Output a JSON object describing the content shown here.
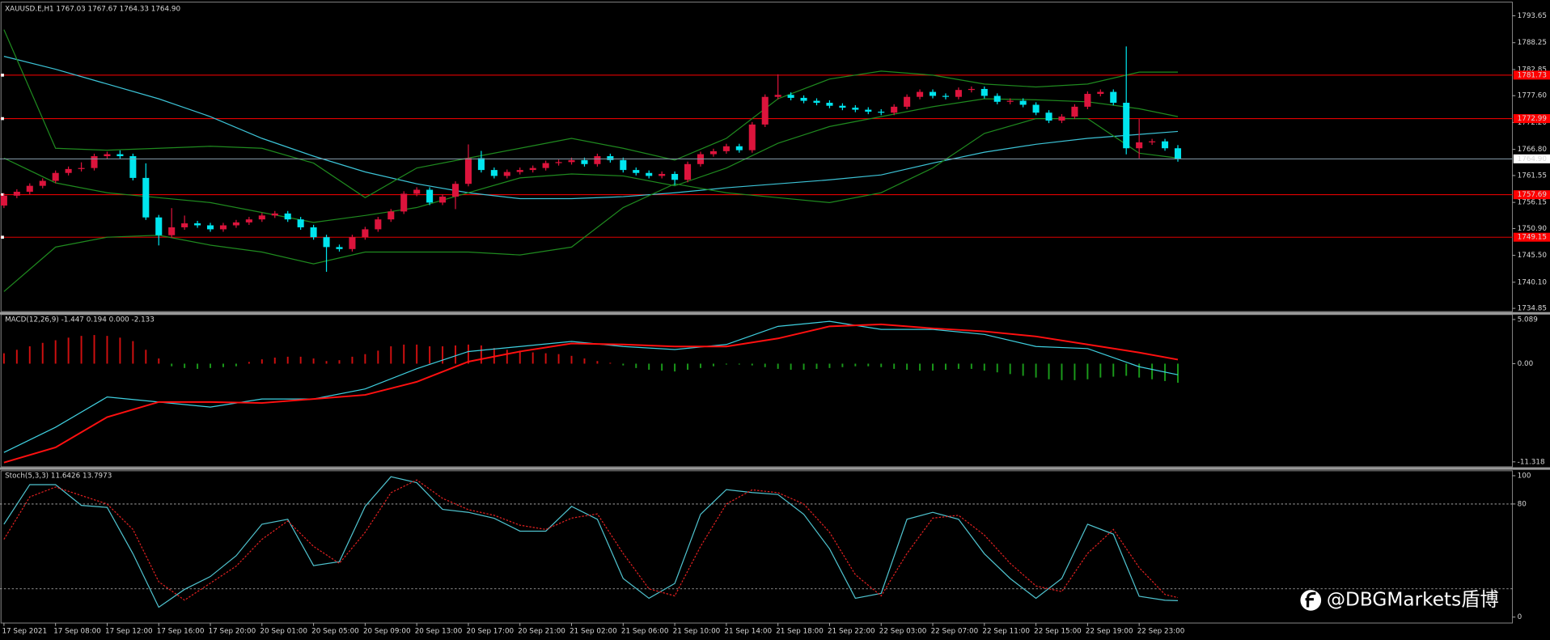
{
  "chart_data": [
    {
      "type": "candlestick",
      "title": "XAUUSD.E,H1  1767.03 1767.67 1764.33 1764.90",
      "x_labels": [
        "17 Sep 2021",
        "17 Sep 08:00",
        "17 Sep 12:00",
        "17 Sep 16:00",
        "17 Sep 20:00",
        "20 Sep 01:00",
        "20 Sep 05:00",
        "20 Sep 09:00",
        "20 Sep 13:00",
        "20 Sep 17:00",
        "20 Sep 21:00",
        "21 Sep 02:00",
        "21 Sep 06:00",
        "21 Sep 10:00",
        "21 Sep 14:00",
        "21 Sep 18:00",
        "21 Sep 22:00",
        "22 Sep 03:00",
        "22 Sep 07:00",
        "22 Sep 11:00",
        "22 Sep 15:00",
        "22 Sep 19:00",
        "22 Sep 23:00"
      ],
      "candles": {
        "open": [
          1755.51,
          1757.5,
          1758.29,
          1759.48,
          1760.48,
          1762.07,
          1762.86,
          1763.06,
          1765.44,
          1765.84,
          1765.44,
          1761.07,
          1753.13,
          1749.55,
          1751.14,
          1751.94,
          1751.54,
          1750.74,
          1751.54,
          1752.13,
          1752.73,
          1753.52,
          1753.92,
          1752.73,
          1751.14,
          1749.15,
          1747.17,
          1746.77,
          1749.15,
          1750.74,
          1752.73,
          1754.32,
          1757.89,
          1758.69,
          1756.11,
          1757.3,
          1759.88,
          1765.05,
          1762.66,
          1761.47,
          1762.26,
          1762.66,
          1763.06,
          1764.05,
          1764.25,
          1764.65,
          1763.85,
          1765.44,
          1764.65,
          1762.66,
          1762.07,
          1761.47,
          1761.87,
          1760.68,
          1763.85,
          1765.84,
          1766.44,
          1767.43,
          1766.64,
          1771.8,
          1777.36,
          1777.76,
          1777.16,
          1776.57,
          1776.17,
          1775.57,
          1775.18,
          1774.78,
          1774.38,
          1774.18,
          1775.38,
          1777.36,
          1778.36,
          1777.56,
          1777.36,
          1778.75,
          1778.95,
          1777.56,
          1776.37,
          1776.57,
          1775.77,
          1774.18,
          1772.59,
          1773.39,
          1775.38,
          1777.96,
          1778.36,
          1776.17,
          1767.03,
          1768.22,
          1768.42,
          1767.03
        ],
        "high": [
          1758.0,
          1758.79,
          1759.98,
          1760.98,
          1762.57,
          1763.36,
          1764.2,
          1765.94,
          1766.34,
          1766.6,
          1765.94,
          1764.0,
          1753.63,
          1755.0,
          1753.5,
          1752.44,
          1752.04,
          1752.04,
          1752.63,
          1753.23,
          1754.02,
          1754.42,
          1754.42,
          1753.23,
          1751.64,
          1749.65,
          1747.67,
          1749.65,
          1751.24,
          1753.23,
          1754.82,
          1758.39,
          1759.19,
          1759.19,
          1757.8,
          1760.38,
          1767.8,
          1766.5,
          1763.16,
          1762.76,
          1763.16,
          1763.56,
          1764.55,
          1764.75,
          1765.15,
          1765.15,
          1765.94,
          1765.94,
          1765.15,
          1763.16,
          1762.57,
          1762.37,
          1762.37,
          1764.35,
          1766.34,
          1766.94,
          1767.93,
          1767.93,
          1772.3,
          1777.86,
          1781.9,
          1778.26,
          1777.66,
          1777.07,
          1776.67,
          1776.07,
          1775.68,
          1775.28,
          1774.88,
          1775.88,
          1777.86,
          1778.86,
          1778.86,
          1778.06,
          1779.25,
          1779.45,
          1779.45,
          1778.06,
          1777.07,
          1777.07,
          1776.27,
          1774.68,
          1773.89,
          1775.88,
          1778.46,
          1778.86,
          1778.86,
          1787.5,
          1772.9,
          1768.92,
          1768.92,
          1767.67
        ],
        "low": [
          1755.01,
          1757.0,
          1757.79,
          1758.98,
          1759.98,
          1761.57,
          1762.36,
          1762.56,
          1764.94,
          1764.94,
          1760.57,
          1752.63,
          1747.5,
          1749.05,
          1750.64,
          1751.04,
          1750.24,
          1750.24,
          1751.04,
          1751.63,
          1752.23,
          1753.02,
          1752.23,
          1750.64,
          1748.65,
          1742.2,
          1746.27,
          1746.27,
          1748.65,
          1750.24,
          1752.23,
          1753.82,
          1757.39,
          1755.61,
          1755.61,
          1754.8,
          1759.38,
          1762.16,
          1760.97,
          1760.97,
          1761.76,
          1762.16,
          1762.56,
          1763.55,
          1763.75,
          1763.35,
          1763.35,
          1764.15,
          1762.16,
          1761.57,
          1760.97,
          1760.97,
          1759.6,
          1760.18,
          1763.35,
          1765.34,
          1765.94,
          1766.14,
          1766.14,
          1771.3,
          1776.86,
          1776.66,
          1776.07,
          1775.67,
          1775.07,
          1774.68,
          1774.28,
          1773.88,
          1773.68,
          1773.68,
          1774.88,
          1776.86,
          1777.06,
          1776.86,
          1776.86,
          1778.25,
          1777.06,
          1775.87,
          1775.87,
          1775.27,
          1773.68,
          1772.09,
          1772.09,
          1772.89,
          1774.88,
          1777.46,
          1775.67,
          1765.8,
          1765.0,
          1767.72,
          1766.53,
          1764.33
        ],
        "close": [
          1757.5,
          1758.29,
          1759.48,
          1760.48,
          1762.07,
          1762.86,
          1763.06,
          1765.44,
          1765.84,
          1765.44,
          1761.07,
          1753.13,
          1749.55,
          1751.14,
          1751.94,
          1751.54,
          1750.74,
          1751.54,
          1752.13,
          1752.73,
          1753.52,
          1753.92,
          1752.73,
          1751.14,
          1749.15,
          1747.17,
          1746.77,
          1749.15,
          1750.74,
          1752.73,
          1754.32,
          1757.89,
          1758.69,
          1756.11,
          1757.3,
          1759.88,
          1765.05,
          1762.66,
          1761.47,
          1762.26,
          1762.66,
          1763.06,
          1764.05,
          1764.25,
          1764.65,
          1763.85,
          1765.44,
          1764.65,
          1762.66,
          1762.07,
          1761.47,
          1761.87,
          1760.68,
          1763.85,
          1765.84,
          1766.44,
          1767.43,
          1766.64,
          1771.8,
          1777.36,
          1777.76,
          1777.16,
          1776.57,
          1776.17,
          1775.57,
          1775.18,
          1774.78,
          1774.38,
          1774.18,
          1775.38,
          1777.36,
          1778.36,
          1777.56,
          1777.36,
          1778.75,
          1778.95,
          1777.56,
          1776.37,
          1776.57,
          1775.77,
          1774.18,
          1772.59,
          1773.39,
          1775.38,
          1777.96,
          1778.36,
          1776.17,
          1767.03,
          1768.22,
          1768.42,
          1767.03,
          1764.9
        ]
      },
      "up_color": "#dc143c",
      "down_color": "#00e5ee",
      "ylim": [
        1734.2,
        1796.2
      ],
      "yticks": [
        1793.65,
        1788.25,
        1782.85,
        {
          "value": 1777.6,
          "label": "1777.60"
        },
        {
          "value": 1772.2,
          "label": "1772.20"
        },
        {
          "value": 1766.8,
          "label": "1766.80"
        },
        1761.55,
        1756.15,
        {
          "value": 1750.9,
          "label": "1750.90"
        },
        {
          "value": 1745.5,
          "label": "1745.50"
        },
        {
          "value": 1740.1,
          "label": "1740.10"
        },
        1734.85
      ],
      "levels": [
        1781.73,
        1772.99,
        1757.69,
        1749.15
      ],
      "level_color": "#ff0000",
      "price_label": {
        "value": 1764.9,
        "label": "1764.90"
      },
      "overlays": {
        "x": [
          0,
          4,
          8,
          12,
          16,
          20,
          24,
          28,
          32,
          36,
          40,
          44,
          48,
          52,
          56,
          60,
          64,
          68,
          72,
          76,
          80,
          84,
          88,
          91
        ],
        "series": [
          {
            "color": "#3cc3d6",
            "values": [
              1785.51,
              1782.92,
              1779.94,
              1776.97,
              1773.39,
              1769.02,
              1765.44,
              1762.27,
              1759.88,
              1758.09,
              1756.9,
              1756.9,
              1757.3,
              1758.09,
              1759.09,
              1759.88,
              1760.68,
              1761.67,
              1764.05,
              1766.24,
              1767.83,
              1769.02,
              1769.81,
              1770.41
            ]
          },
          {
            "color": "#1f8a1f",
            "values": [
              1790.87,
              1767.03,
              1766.64,
              1767.03,
              1767.43,
              1767.03,
              1764.05,
              1757.1,
              1763.06,
              1765.05,
              1767.03,
              1769.02,
              1767.03,
              1764.65,
              1769.02,
              1776.97,
              1780.94,
              1782.53,
              1781.73,
              1779.94,
              1779.35,
              1779.94,
              1782.33,
              1782.33
            ]
          },
          {
            "color": "#1f8a1f",
            "values": [
              1765.05,
              1760.08,
              1758.09,
              1757.1,
              1756.11,
              1754.12,
              1752.13,
              1753.52,
              1755.11,
              1758.09,
              1761.07,
              1761.87,
              1761.47,
              1759.48,
              1763.06,
              1768.03,
              1771.4,
              1773.39,
              1775.38,
              1776.97,
              1776.77,
              1776.37,
              1774.98,
              1773.39
            ]
          },
          {
            "color": "#1f8a1f",
            "values": [
              1738.23,
              1747.17,
              1749.15,
              1749.55,
              1747.56,
              1746.17,
              1743.79,
              1746.17,
              1746.17,
              1746.17,
              1745.58,
              1747.17,
              1755.11,
              1759.88,
              1758.09,
              1757.1,
              1756.11,
              1758.09,
              1763.06,
              1770.01,
              1772.99,
              1772.99,
              1766.04,
              1765.05
            ]
          }
        ]
      }
    },
    {
      "type": "macd",
      "label": "MACD(12,26,9) -1.447 0.194 0.000 -2.133",
      "ylim": [
        -11.89,
        5.66
      ],
      "yticks": [
        5.089,
        {
          "value": 0,
          "label": "0.00"
        },
        -11.318
      ],
      "histogram": {
        "up_color": "#d01010",
        "down_color": "#1a9a1a",
        "values": [
          1.2,
          1.6,
          2.0,
          2.4,
          2.7,
          3.0,
          3.2,
          3.3,
          3.2,
          3.0,
          2.6,
          1.6,
          0.6,
          -0.3,
          -0.5,
          -0.6,
          -0.5,
          -0.4,
          -0.3,
          0.2,
          0.5,
          0.7,
          0.8,
          0.8,
          0.6,
          0.3,
          0.4,
          0.8,
          1.1,
          1.5,
          2.0,
          2.2,
          2.2,
          2.0,
          2.0,
          2.1,
          2.2,
          2.1,
          1.8,
          1.6,
          1.5,
          1.3,
          1.2,
          1.1,
          0.9,
          0.6,
          0.3,
          0.1,
          -0.2,
          -0.5,
          -0.7,
          -0.8,
          -0.9,
          -0.7,
          -0.5,
          -0.3,
          -0.1,
          -0.1,
          -0.2,
          -0.4,
          -0.6,
          -0.7,
          -0.7,
          -0.6,
          -0.5,
          -0.4,
          -0.3,
          -0.3,
          -0.4,
          -0.6,
          -0.7,
          -0.8,
          -0.8,
          -0.7,
          -0.6,
          -0.6,
          -0.8,
          -1.0,
          -1.2,
          -1.4,
          -1.6,
          -1.8,
          -1.9,
          -1.9,
          -1.8,
          -1.6,
          -1.5,
          -1.4,
          -1.6,
          -1.8,
          -2.0,
          -2.2
        ]
      },
      "x": [
        0,
        4,
        8,
        12,
        16,
        20,
        24,
        28,
        32,
        36,
        40,
        44,
        48,
        52,
        56,
        60,
        64,
        68,
        72,
        76,
        80,
        84,
        88,
        91
      ],
      "series": [
        {
          "color": "#3fd0e0",
          "values": [
            -10.23,
            -7.33,
            -3.84,
            -4.42,
            -5.0,
            -4.07,
            -4.07,
            -2.91,
            -0.58,
            1.4,
            1.98,
            2.56,
            1.98,
            1.63,
            2.21,
            4.3,
            4.88,
            3.95,
            3.95,
            3.37,
            1.98,
            1.74,
            -0.35,
            -1.28
          ]
        },
        {
          "color": "#ff1010",
          "values": [
            -11.4,
            -9.65,
            -6.16,
            -4.42,
            -4.42,
            -4.53,
            -4.07,
            -3.6,
            -2.09,
            0.23,
            1.4,
            2.33,
            2.21,
            1.98,
            1.98,
            2.91,
            4.3,
            4.53,
            4.07,
            3.72,
            3.14,
            2.21,
            1.28,
            0.47
          ]
        }
      ]
    },
    {
      "type": "line",
      "label": "Stoch(5,3,3) 11.6426 13.7973",
      "ylim": [
        -4.2,
        103.5
      ],
      "yticks": [
        0,
        80,
        100
      ],
      "levels": [
        20,
        80
      ],
      "x": [
        0,
        2,
        4,
        6,
        8,
        10,
        12,
        14,
        16,
        18,
        20,
        22,
        24,
        26,
        28,
        30,
        32,
        34,
        36,
        38,
        40,
        42,
        44,
        46,
        48,
        50,
        52,
        54,
        56,
        58,
        60,
        62,
        64,
        66,
        68,
        70,
        72,
        74,
        76,
        78,
        80,
        82,
        84,
        86,
        88,
        90,
        91
      ],
      "series": [
        {
          "color": "#4fc3cf",
          "dash": false,
          "values": [
            65.7,
            93.7,
            93.7,
            79.0,
            77.6,
            44.8,
            7.0,
            19.6,
            28.7,
            43.4,
            65.7,
            69.2,
            36.4,
            39.2,
            78.3,
            99.3,
            95.1,
            76.2,
            74.1,
            69.9,
            60.8,
            60.8,
            78.3,
            69.2,
            27.3,
            13.3,
            23.8,
            72.7,
            90.2,
            88.1,
            86.7,
            72.7,
            48.3,
            13.3,
            16.8,
            69.2,
            74.1,
            69.2,
            44.8,
            27.3,
            13.3,
            27.3,
            65.7,
            58.7,
            14.7,
            11.9,
            11.6426
          ]
        },
        {
          "color": "#e02020",
          "dash": true,
          "values": [
            55,
            85,
            92,
            86,
            80,
            62,
            25,
            12,
            24,
            36,
            55,
            68,
            50,
            38,
            60,
            88,
            97,
            84,
            76,
            72,
            65,
            62,
            70,
            73,
            45,
            20,
            15,
            50,
            80,
            90,
            88,
            80,
            60,
            30,
            15,
            45,
            70,
            72,
            58,
            38,
            22,
            18,
            45,
            62,
            35,
            16,
            13.7973
          ]
        }
      ]
    }
  ],
  "watermark": "@DBGMarkets盾博"
}
